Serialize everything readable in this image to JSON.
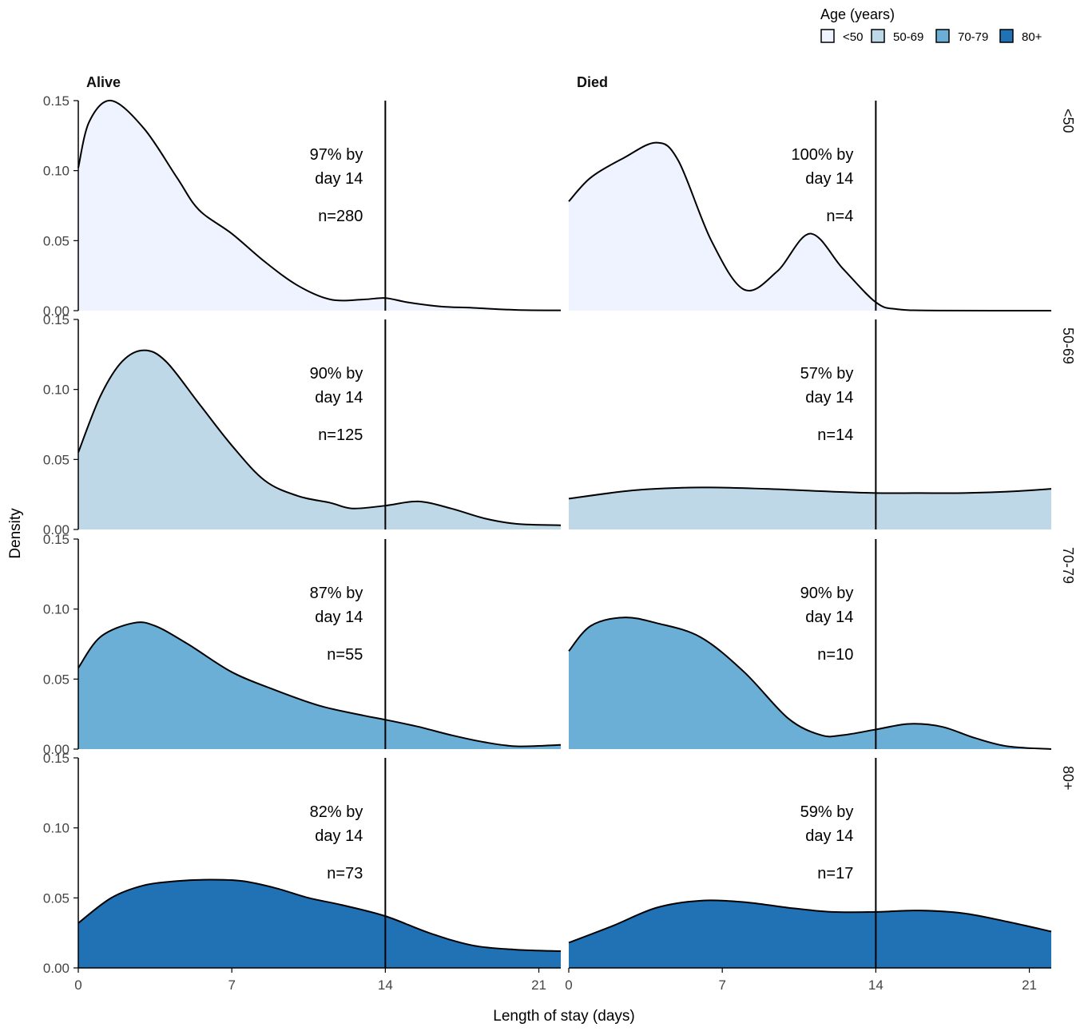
{
  "chart_data": {
    "type": "area",
    "subtype": "faceted density plot",
    "xlabel": "Length of stay (days)",
    "ylabel": "Density",
    "xlim": [
      0,
      22
    ],
    "ylim": [
      0,
      0.15
    ],
    "x_ticks": [
      0,
      7,
      14,
      21
    ],
    "y_ticks": [
      0.0,
      0.05,
      0.1,
      0.15
    ],
    "y_tick_labels": [
      "0.00",
      "0.05",
      "0.10",
      "0.15"
    ],
    "reference_line_x": 14,
    "column_facets": [
      "Alive",
      "Died"
    ],
    "row_facets": [
      "<50",
      "50-69",
      "70-79",
      "80+"
    ],
    "legend": {
      "title": "Age (years)",
      "position": "top-right",
      "entries": [
        {
          "label": "<50",
          "color": "#EEF3FF"
        },
        {
          "label": "50-69",
          "color": "#BFD8E7"
        },
        {
          "label": "70-79",
          "color": "#6BAED6"
        },
        {
          "label": "80+",
          "color": "#2171B5"
        }
      ]
    },
    "panels": [
      {
        "column": "Alive",
        "row": "<50",
        "pct_label": "97% by",
        "day_label": "day 14",
        "n_label": "n=280",
        "x": [
          0,
          0.5,
          1.5,
          3,
          4.5,
          5.5,
          7,
          8.5,
          10,
          11.5,
          13,
          14,
          15,
          16.5,
          18,
          20,
          22
        ],
        "y": [
          0.102,
          0.135,
          0.15,
          0.13,
          0.095,
          0.072,
          0.055,
          0.035,
          0.018,
          0.008,
          0.008,
          0.009,
          0.006,
          0.003,
          0.002,
          0.0005,
          0.0002
        ]
      },
      {
        "column": "Died",
        "row": "<50",
        "pct_label": "100% by",
        "day_label": "day 14",
        "n_label": "n=4",
        "x": [
          0,
          1,
          2.5,
          4,
          5,
          6.5,
          8,
          9.5,
          11,
          12.5,
          14,
          15,
          17,
          22
        ],
        "y": [
          0.078,
          0.095,
          0.109,
          0.12,
          0.107,
          0.05,
          0.015,
          0.028,
          0.055,
          0.03,
          0.006,
          0.001,
          0.0001,
          0.0
        ]
      },
      {
        "column": "Alive",
        "row": "50-69",
        "pct_label": "90% by",
        "day_label": "day 14",
        "n_label": "n=125",
        "x": [
          0,
          1,
          2,
          3,
          4,
          5.5,
          7,
          8.5,
          10,
          11.5,
          12.5,
          14,
          15.5,
          17,
          18.5,
          20,
          22
        ],
        "y": [
          0.055,
          0.095,
          0.12,
          0.128,
          0.12,
          0.09,
          0.06,
          0.035,
          0.024,
          0.019,
          0.015,
          0.017,
          0.02,
          0.015,
          0.008,
          0.004,
          0.003
        ]
      },
      {
        "column": "Died",
        "row": "50-69",
        "pct_label": "57% by",
        "day_label": "day 14",
        "n_label": "n=14",
        "x": [
          0,
          3,
          6,
          9,
          12,
          14,
          16,
          18,
          20,
          22
        ],
        "y": [
          0.022,
          0.028,
          0.03,
          0.029,
          0.027,
          0.026,
          0.026,
          0.026,
          0.027,
          0.029
        ]
      },
      {
        "column": "Alive",
        "row": "70-79",
        "pct_label": "87% by",
        "day_label": "day 14",
        "n_label": "n=55",
        "x": [
          0,
          1,
          2.5,
          3.5,
          5,
          7,
          9,
          11,
          13,
          14,
          15.5,
          17,
          18.5,
          20,
          22
        ],
        "y": [
          0.058,
          0.08,
          0.09,
          0.088,
          0.075,
          0.055,
          0.042,
          0.031,
          0.024,
          0.021,
          0.016,
          0.01,
          0.005,
          0.002,
          0.003
        ]
      },
      {
        "column": "Died",
        "row": "70-79",
        "pct_label": "90% by",
        "day_label": "day 14",
        "n_label": "n=10",
        "x": [
          0,
          1,
          2.5,
          4,
          6,
          8,
          10,
          11.5,
          12.5,
          14,
          15.5,
          17,
          18.5,
          20,
          22
        ],
        "y": [
          0.07,
          0.088,
          0.094,
          0.09,
          0.08,
          0.055,
          0.022,
          0.01,
          0.01,
          0.014,
          0.018,
          0.016,
          0.008,
          0.002,
          0.0
        ]
      },
      {
        "column": "Alive",
        "row": "80+",
        "pct_label": "82% by",
        "day_label": "day 14",
        "n_label": "n=73",
        "x": [
          0,
          1.5,
          3,
          4.5,
          6,
          7.5,
          9,
          10.5,
          12,
          14,
          16,
          18,
          20,
          22
        ],
        "y": [
          0.032,
          0.05,
          0.059,
          0.062,
          0.063,
          0.062,
          0.057,
          0.05,
          0.045,
          0.037,
          0.025,
          0.016,
          0.013,
          0.012
        ]
      },
      {
        "column": "Died",
        "row": "80+",
        "pct_label": "59% by",
        "day_label": "day 14",
        "n_label": "n=17",
        "x": [
          0,
          2,
          4,
          6,
          8,
          10,
          12,
          14,
          16,
          18,
          20,
          22
        ],
        "y": [
          0.018,
          0.03,
          0.043,
          0.048,
          0.047,
          0.043,
          0.04,
          0.04,
          0.041,
          0.039,
          0.033,
          0.026
        ]
      }
    ]
  }
}
